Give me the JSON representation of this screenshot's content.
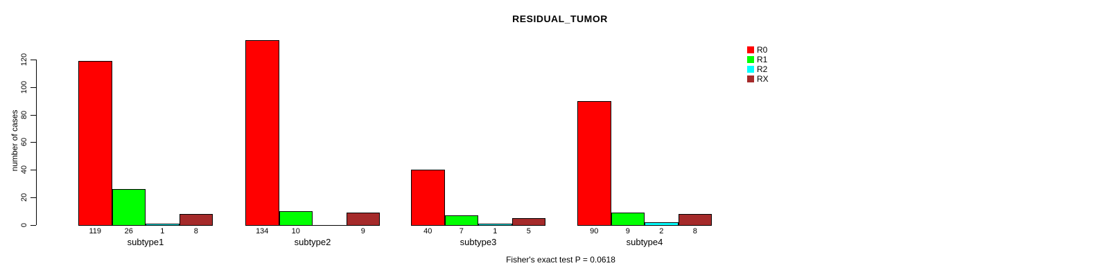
{
  "chart_data": {
    "type": "bar",
    "title": "RESIDUAL_TUMOR",
    "ylabel": "number of cases",
    "xlabel": "",
    "footer": "Fisher's exact test P = 0.0618",
    "categories": [
      "subtype1",
      "subtype2",
      "subtype3",
      "subtype4"
    ],
    "series": [
      {
        "name": "R0",
        "color": "#FF0000",
        "values": [
          119,
          134,
          40,
          90
        ]
      },
      {
        "name": "R1",
        "color": "#00FF00",
        "values": [
          26,
          10,
          7,
          9
        ]
      },
      {
        "name": "R2",
        "color": "#00FFFF",
        "values": [
          1,
          0,
          1,
          2
        ]
      },
      {
        "name": "RX",
        "color": "#A52A2A",
        "values": [
          8,
          9,
          5,
          8
        ]
      }
    ],
    "bar_value_labels": [
      [
        "119",
        "26",
        "1",
        "8"
      ],
      [
        "134",
        "10",
        "",
        "9"
      ],
      [
        "40",
        "7",
        "1",
        "5"
      ],
      [
        "90",
        "9",
        "2",
        "8"
      ]
    ],
    "ylim": [
      0,
      120
    ],
    "yticks": [
      0,
      20,
      40,
      60,
      80,
      100,
      120
    ],
    "grid": false,
    "legend_position": "right",
    "bar_border_color": "#000000",
    "axis_color": "#000000"
  }
}
